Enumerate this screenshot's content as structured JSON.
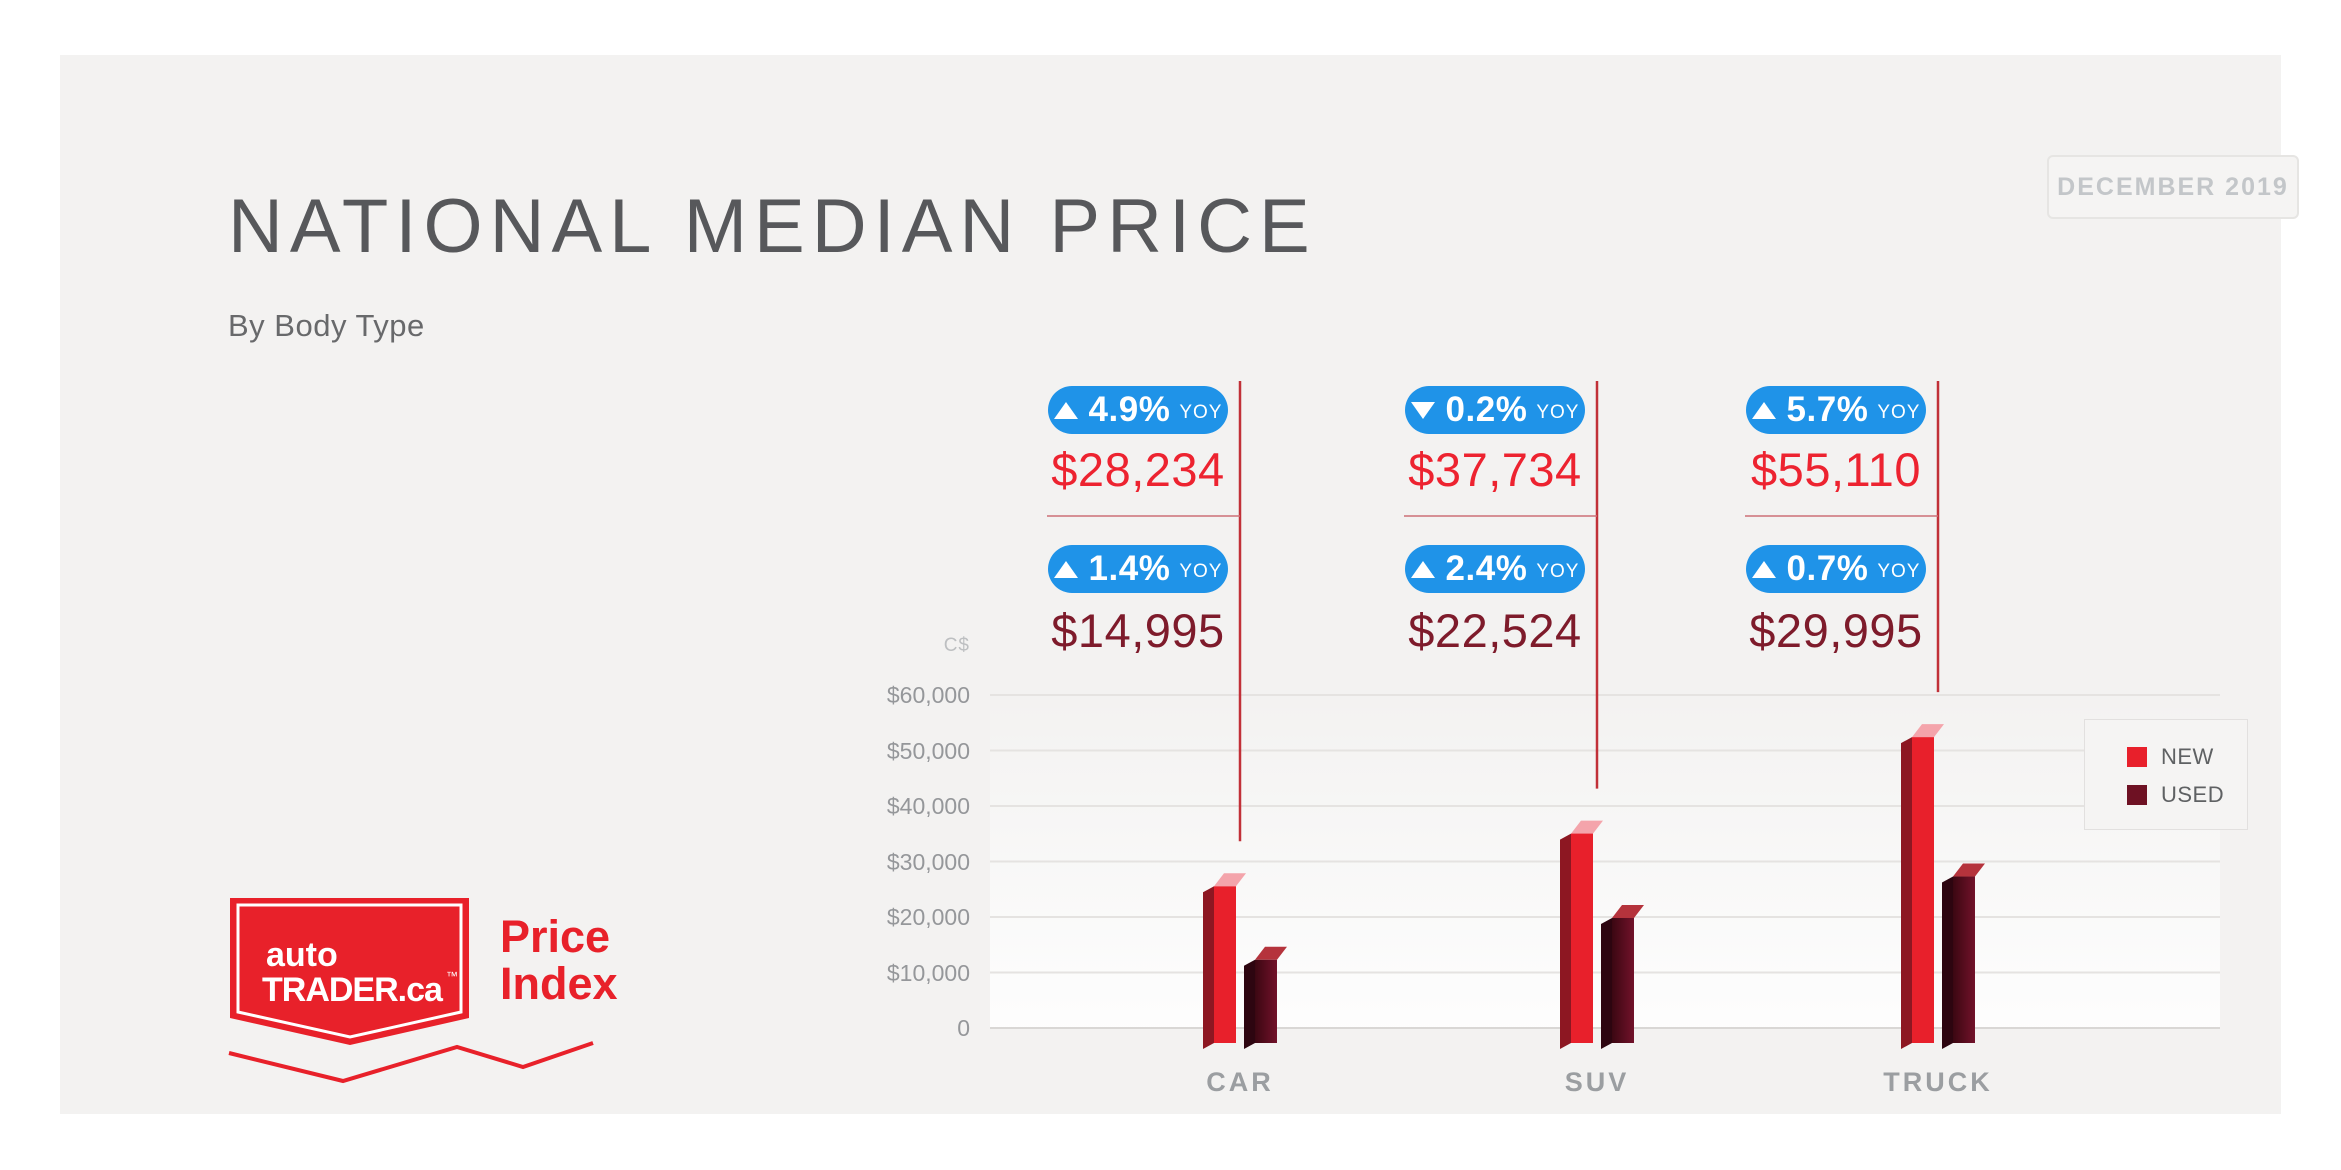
{
  "header": {
    "title": "NATIONAL MEDIAN PRICE",
    "subtitle": "By Body Type",
    "date_badge": "DECEMBER 2019"
  },
  "chart_data": {
    "type": "bar",
    "title": "NATIONAL MEDIAN PRICE",
    "subtitle": "By Body Type",
    "period": "DECEMBER 2019",
    "currency_label": "C$",
    "categories": [
      "CAR",
      "SUV",
      "TRUCK"
    ],
    "series": [
      {
        "name": "NEW",
        "color": "#e8202b",
        "values": [
          28234,
          37734,
          55110
        ],
        "yoy_pct_change": [
          4.9,
          -0.2,
          5.7
        ]
      },
      {
        "name": "USED",
        "color": "#6e1123",
        "values": [
          14995,
          22524,
          29995
        ],
        "yoy_pct_change": [
          1.4,
          2.4,
          0.7
        ]
      }
    ],
    "ylim": [
      0,
      60000
    ],
    "grid": true,
    "legend_position": "right",
    "yticks": [
      {
        "value": 60000,
        "label": "$60,000"
      },
      {
        "value": 50000,
        "label": "$50,000"
      },
      {
        "value": 40000,
        "label": "$40,000"
      },
      {
        "value": 30000,
        "label": "$30,000"
      },
      {
        "value": 20000,
        "label": "$20,000"
      },
      {
        "value": 10000,
        "label": "$10,000"
      },
      {
        "value": 0,
        "label": "0"
      }
    ]
  },
  "callouts": {
    "groups": [
      {
        "category": "CAR",
        "new": {
          "direction": "up",
          "pct": "4.9%",
          "suffix": "YOY",
          "price": "$28,234"
        },
        "used": {
          "direction": "up",
          "pct": "1.4%",
          "suffix": "YOY",
          "price": "$14,995"
        }
      },
      {
        "category": "SUV",
        "new": {
          "direction": "down",
          "pct": "0.2%",
          "suffix": "YOY",
          "price": "$37,734"
        },
        "used": {
          "direction": "up",
          "pct": "2.4%",
          "suffix": "YOY",
          "price": "$22,524"
        }
      },
      {
        "category": "TRUCK",
        "new": {
          "direction": "up",
          "pct": "5.7%",
          "suffix": "YOY",
          "price": "$55,110"
        },
        "used": {
          "direction": "up",
          "pct": "0.7%",
          "suffix": "YOY",
          "price": "$29,995"
        }
      }
    ]
  },
  "legend": {
    "items": [
      {
        "label": "NEW",
        "color": "#e8202b"
      },
      {
        "label": "USED",
        "color": "#6e1123"
      }
    ]
  },
  "logo": {
    "badge_line1": "auto",
    "badge_line2": "TRADER.ca",
    "trademark": "™",
    "product_line1": "Price",
    "product_line2": "Index"
  },
  "colors": {
    "card_background": "#f3f2f1",
    "pill_blue": "#1f93e8",
    "new_price_text": "#ed2330",
    "used_price_text": "#7e1b2b",
    "callout_line": "#c13038",
    "grid_line": "#e5e3e1",
    "brand_red": "#e8212a"
  }
}
